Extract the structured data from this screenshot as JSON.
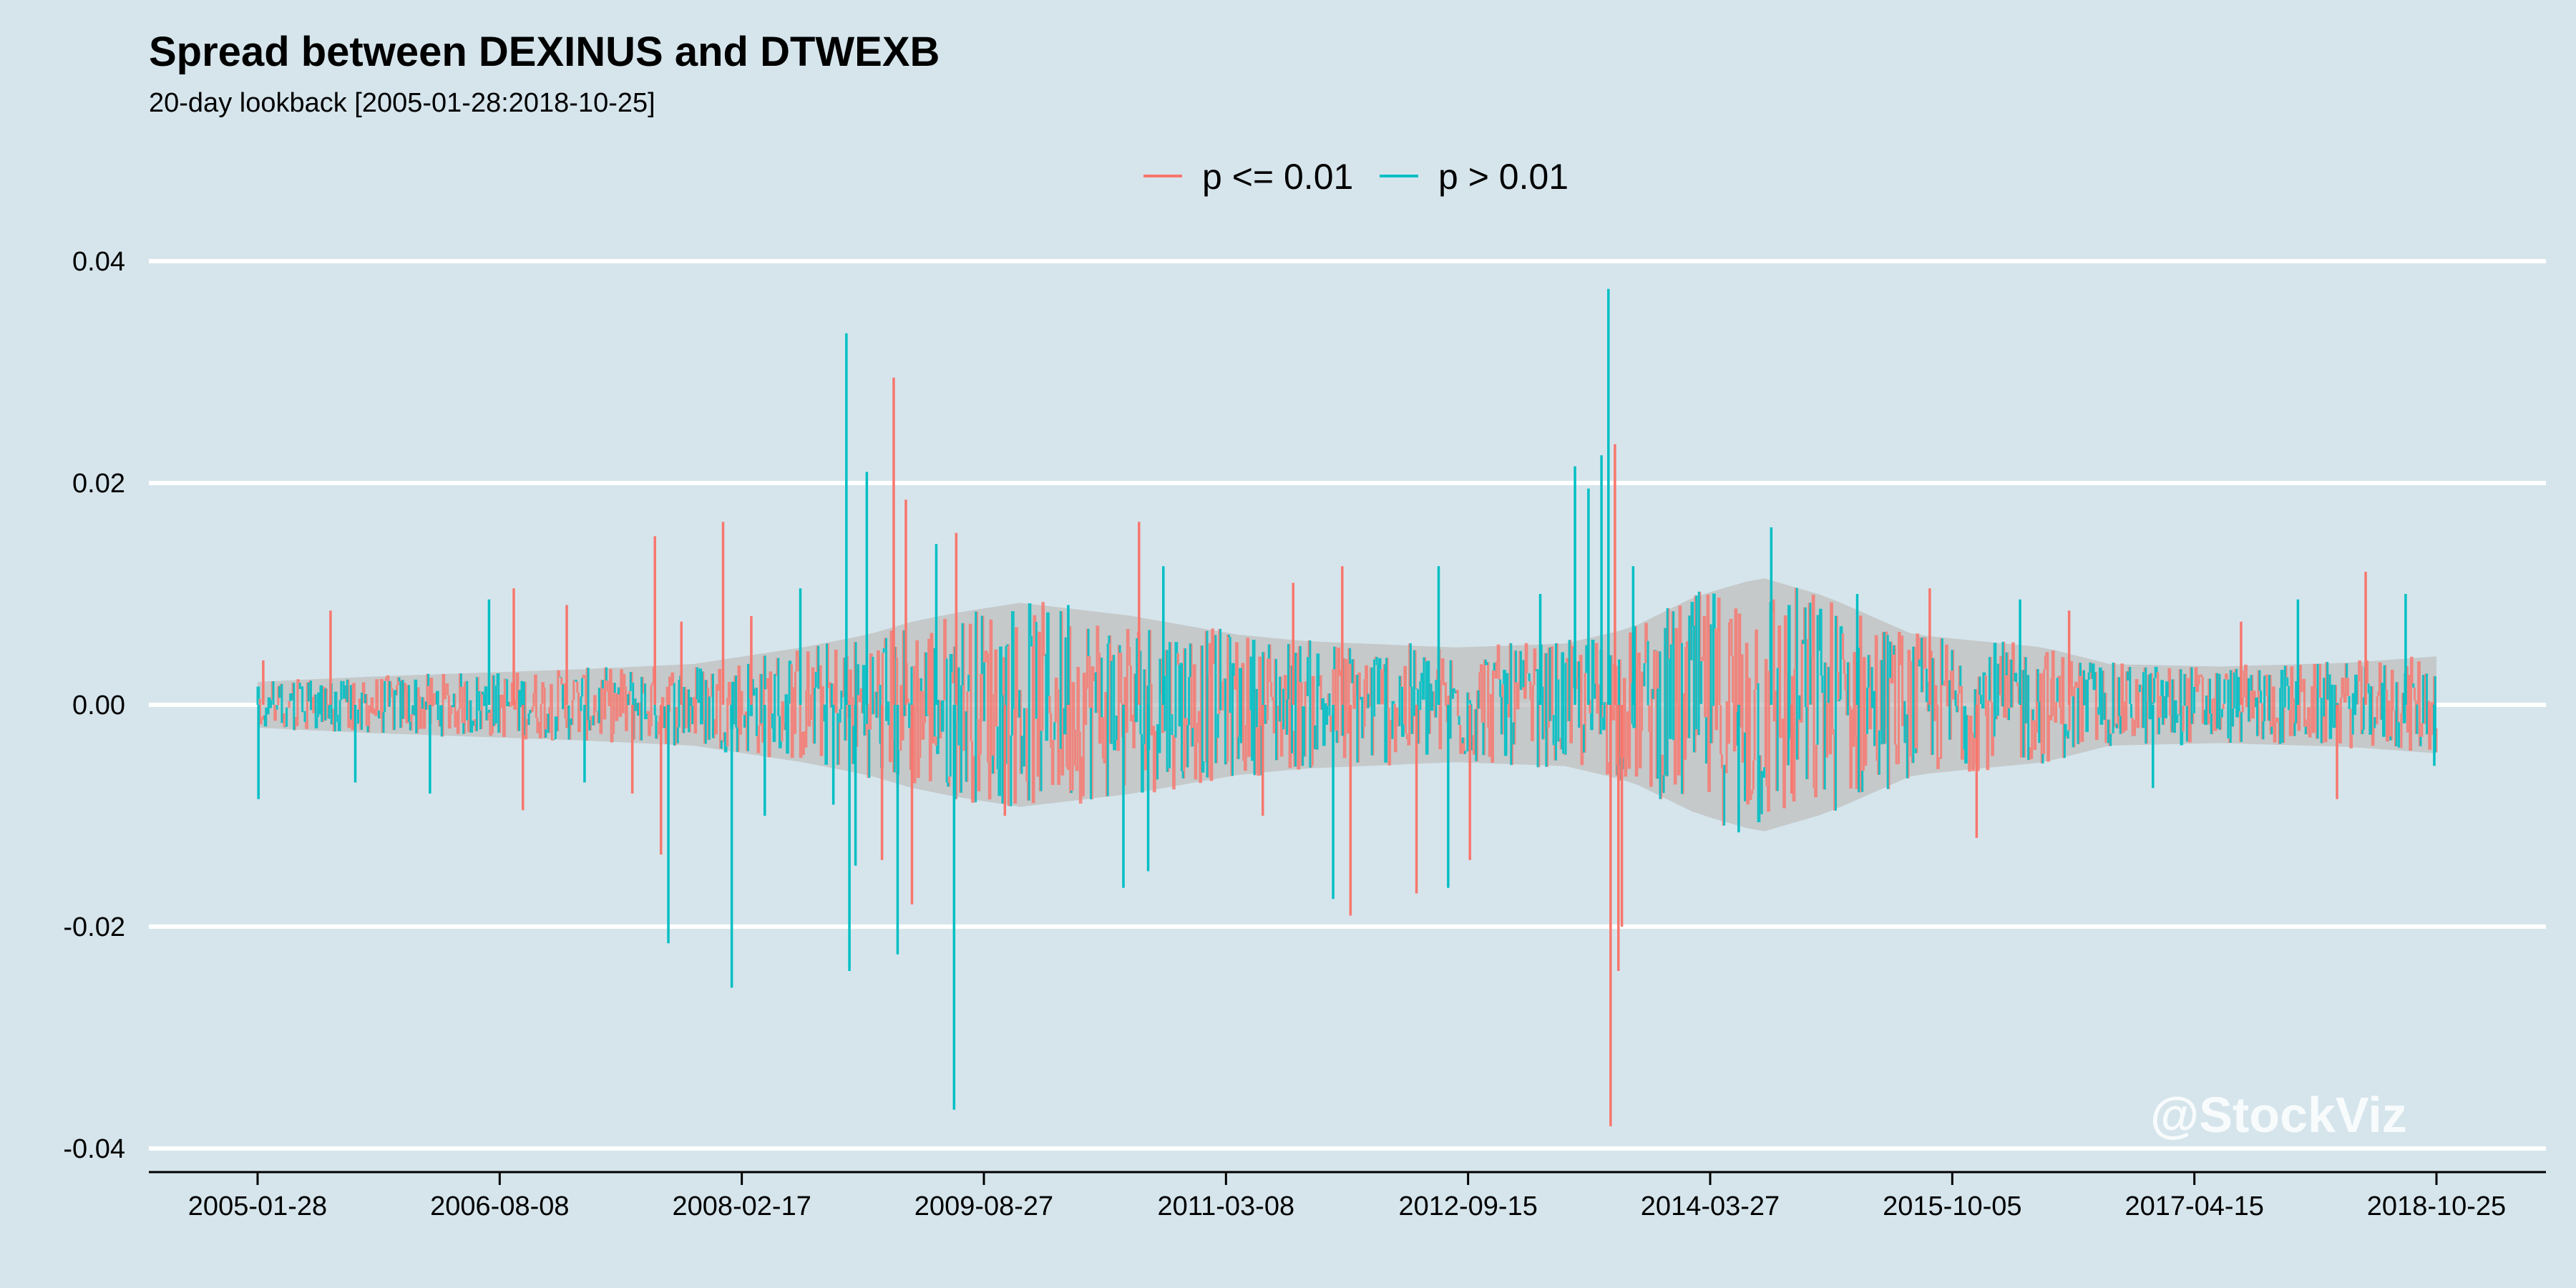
{
  "chart_data": {
    "type": "line",
    "title": "Spread between DEXINUS and DTWEXB",
    "subtitle": "20-day lookback [2005-01-28:2018-10-25]",
    "xlabel": "",
    "ylabel": "",
    "x_range": [
      "2005-01-28",
      "2018-10-25"
    ],
    "ylim": [
      -0.04,
      0.04
    ],
    "y_ticks": [
      {
        "value": -0.04,
        "label": "-0.04"
      },
      {
        "value": -0.02,
        "label": "-0.02"
      },
      {
        "value": 0.0,
        "label": "0.00"
      },
      {
        "value": 0.02,
        "label": "0.02"
      },
      {
        "value": 0.04,
        "label": "0.04"
      }
    ],
    "x_ticks": [
      "2005-01-28",
      "2006-08-08",
      "2008-02-17",
      "2009-08-27",
      "2011-03-08",
      "2012-09-15",
      "2014-03-27",
      "2015-10-05",
      "2017-04-15",
      "2018-10-25"
    ],
    "grid": true,
    "legend_position": "top",
    "series": [
      {
        "name": "p <= 0.01",
        "color": "#f8766d"
      },
      {
        "name": "p > 0.01",
        "color": "#00bfc4"
      }
    ],
    "band_color": "#bfbfbf",
    "spikes": [
      {
        "date": "2005-01-30",
        "value": -0.0085,
        "series": 1
      },
      {
        "date": "2005-02-10",
        "value": 0.004,
        "series": 0
      },
      {
        "date": "2005-07-15",
        "value": 0.0085,
        "series": 0
      },
      {
        "date": "2005-09-10",
        "value": -0.007,
        "series": 1
      },
      {
        "date": "2006-03-01",
        "value": -0.008,
        "series": 1
      },
      {
        "date": "2006-07-15",
        "value": 0.0095,
        "series": 1
      },
      {
        "date": "2006-09-10",
        "value": 0.0105,
        "series": 0
      },
      {
        "date": "2006-10-01",
        "value": -0.0095,
        "series": 0
      },
      {
        "date": "2007-01-10",
        "value": 0.009,
        "series": 0
      },
      {
        "date": "2007-02-20",
        "value": -0.007,
        "series": 1
      },
      {
        "date": "2007-06-10",
        "value": -0.008,
        "series": 0
      },
      {
        "date": "2007-08-01",
        "value": 0.0152,
        "series": 0
      },
      {
        "date": "2007-08-15",
        "value": -0.0135,
        "series": 0
      },
      {
        "date": "2007-09-01",
        "value": -0.0215,
        "series": 1
      },
      {
        "date": "2007-10-01",
        "value": 0.0075,
        "series": 0
      },
      {
        "date": "2008-01-05",
        "value": 0.0165,
        "series": 0
      },
      {
        "date": "2008-01-25",
        "value": -0.0255,
        "series": 1
      },
      {
        "date": "2008-03-10",
        "value": 0.008,
        "series": 0
      },
      {
        "date": "2008-04-10",
        "value": -0.01,
        "series": 1
      },
      {
        "date": "2008-07-01",
        "value": 0.0105,
        "series": 1
      },
      {
        "date": "2008-09-15",
        "value": -0.009,
        "series": 1
      },
      {
        "date": "2008-10-15",
        "value": 0.0335,
        "series": 1
      },
      {
        "date": "2008-10-22",
        "value": -0.024,
        "series": 1
      },
      {
        "date": "2008-11-05",
        "value": -0.0145,
        "series": 1
      },
      {
        "date": "2008-12-01",
        "value": 0.021,
        "series": 1
      },
      {
        "date": "2009-01-05",
        "value": -0.014,
        "series": 0
      },
      {
        "date": "2009-02-01",
        "value": 0.0295,
        "series": 0
      },
      {
        "date": "2009-02-10",
        "value": -0.0225,
        "series": 1
      },
      {
        "date": "2009-03-01",
        "value": 0.0185,
        "series": 0
      },
      {
        "date": "2009-03-15",
        "value": -0.018,
        "series": 0
      },
      {
        "date": "2009-05-10",
        "value": 0.0145,
        "series": 1
      },
      {
        "date": "2009-06-20",
        "value": -0.0365,
        "series": 1
      },
      {
        "date": "2009-06-25",
        "value": 0.0155,
        "series": 0
      },
      {
        "date": "2009-10-15",
        "value": -0.01,
        "series": 0
      },
      {
        "date": "2010-03-10",
        "value": 0.009,
        "series": 1
      },
      {
        "date": "2010-07-15",
        "value": -0.0165,
        "series": 1
      },
      {
        "date": "2010-08-20",
        "value": 0.0165,
        "series": 0
      },
      {
        "date": "2010-09-10",
        "value": -0.015,
        "series": 1
      },
      {
        "date": "2010-10-15",
        "value": 0.0125,
        "series": 1
      },
      {
        "date": "2011-06-01",
        "value": -0.01,
        "series": 0
      },
      {
        "date": "2011-08-10",
        "value": 0.011,
        "series": 0
      },
      {
        "date": "2011-11-10",
        "value": -0.0175,
        "series": 1
      },
      {
        "date": "2011-12-01",
        "value": 0.0125,
        "series": 0
      },
      {
        "date": "2011-12-20",
        "value": -0.019,
        "series": 0
      },
      {
        "date": "2012-05-20",
        "value": -0.017,
        "series": 0
      },
      {
        "date": "2012-07-10",
        "value": 0.0125,
        "series": 1
      },
      {
        "date": "2012-08-01",
        "value": -0.0165,
        "series": 1
      },
      {
        "date": "2012-09-20",
        "value": -0.014,
        "series": 0
      },
      {
        "date": "2013-03-01",
        "value": 0.01,
        "series": 1
      },
      {
        "date": "2013-05-20",
        "value": 0.0215,
        "series": 1
      },
      {
        "date": "2013-06-20",
        "value": 0.0195,
        "series": 1
      },
      {
        "date": "2013-07-20",
        "value": 0.0225,
        "series": 1
      },
      {
        "date": "2013-08-05",
        "value": 0.0375,
        "series": 1
      },
      {
        "date": "2013-08-10",
        "value": -0.038,
        "series": 0
      },
      {
        "date": "2013-08-20",
        "value": 0.0235,
        "series": 0
      },
      {
        "date": "2013-08-28",
        "value": -0.024,
        "series": 0
      },
      {
        "date": "2013-09-05",
        "value": -0.02,
        "series": 0
      },
      {
        "date": "2013-10-01",
        "value": 0.0125,
        "series": 1
      },
      {
        "date": "2014-06-01",
        "value": -0.0115,
        "series": 1
      },
      {
        "date": "2014-08-15",
        "value": 0.016,
        "series": 1
      },
      {
        "date": "2014-10-01",
        "value": -0.008,
        "series": 0
      },
      {
        "date": "2015-03-01",
        "value": 0.01,
        "series": 1
      },
      {
        "date": "2015-08-15",
        "value": 0.0105,
        "series": 0
      },
      {
        "date": "2015-12-01",
        "value": -0.012,
        "series": 0
      },
      {
        "date": "2016-03-10",
        "value": 0.0095,
        "series": 1
      },
      {
        "date": "2016-07-01",
        "value": 0.0085,
        "series": 0
      },
      {
        "date": "2017-01-10",
        "value": -0.0075,
        "series": 1
      },
      {
        "date": "2017-08-01",
        "value": 0.0075,
        "series": 0
      },
      {
        "date": "2017-12-10",
        "value": 0.0095,
        "series": 1
      },
      {
        "date": "2018-03-10",
        "value": -0.0085,
        "series": 0
      },
      {
        "date": "2018-05-15",
        "value": 0.012,
        "series": 0
      },
      {
        "date": "2018-08-15",
        "value": 0.01,
        "series": 1
      },
      {
        "date": "2018-10-20",
        "value": -0.0055,
        "series": 1
      }
    ]
  },
  "watermark": "@StockViz"
}
